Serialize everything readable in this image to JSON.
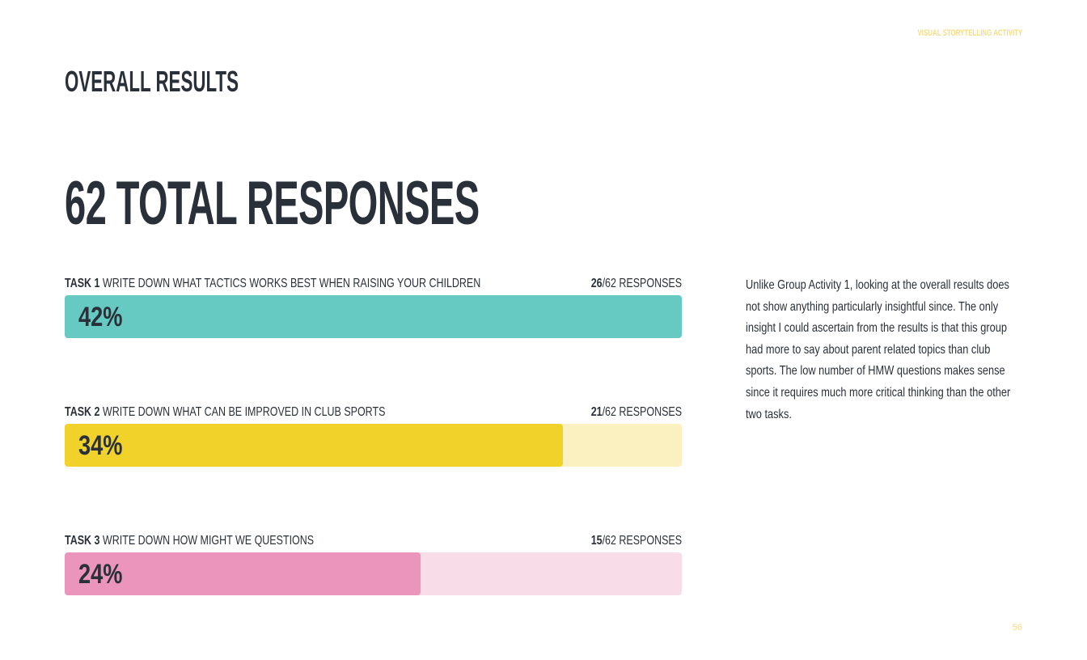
{
  "header": {
    "label": "VISUAL STORYTELLING ACTIVITY",
    "title": "OVERALL RESULTS"
  },
  "headline": "62 TOTAL RESPONSES",
  "tasks": [
    {
      "task": "TASK 1",
      "description": "WRITE DOWN WHAT TACTICS WORKS BEST WHEN RAISING YOUR CHILDREN",
      "count": 26,
      "total_label": "/62 RESPONSES",
      "percent_label": "42%",
      "color": "#66c9c2",
      "track_color": "#d3efec"
    },
    {
      "task": "TASK 2",
      "description": "WRITE DOWN WHAT CAN BE IMPROVED IN CLUB SPORTS",
      "count": 21,
      "total_label": "/62 RESPONSES",
      "percent_label": "34%",
      "color": "#f1d22a",
      "track_color": "#faf0c0"
    },
    {
      "task": "TASK 3",
      "description": "WRITE DOWN HOW MIGHT WE QUESTIONS",
      "count": 15,
      "total_label": "/62 RESPONSES",
      "percent_label": "24%",
      "color": "#eb94bc",
      "track_color": "#f8dde9"
    }
  ],
  "body": "Unlike Group Activity 1, looking at the overall results does not show anything particularly insightful since. The only insight I could ascertain from the results is that this group had more to say about parent related topics than club sports. The low number of HMW questions makes sense since it requires much more critical thinking than the other two tasks.",
  "page_number": "56"
}
